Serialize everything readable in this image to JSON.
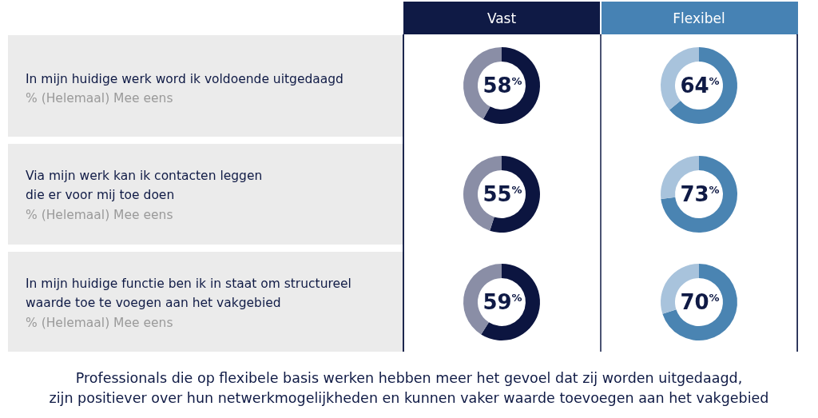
{
  "chart_data": [
    {
      "type": "donut",
      "categories": [
        null,
        null
      ],
      "values": [
        58,
        42
      ],
      "colors": [
        "#0c1540",
        "#8a8ea6"
      ],
      "value_labels": [
        "58$^{%}$",
        null
      ]
    },
    {
      "type": "donut",
      "categories": [
        null,
        null
      ],
      "values": [
        64,
        36
      ],
      "colors": [
        "#4a84b2",
        "#a8c3dc"
      ],
      "value_labels": [
        "64$^{%}$",
        null
      ]
    },
    {
      "type": "donut",
      "categories": [
        null,
        null
      ],
      "values": [
        55,
        45
      ],
      "colors": [
        "#0c1540",
        "#8a8ea6"
      ],
      "value_labels": [
        "55$^{%}$",
        null
      ]
    },
    {
      "type": "donut",
      "categories": [
        null,
        null
      ],
      "values": [
        73,
        27
      ],
      "colors": [
        "#4a84b2",
        "#a8c3dc"
      ],
      "value_labels": [
        "73$^{%}$",
        null
      ]
    },
    {
      "type": "donut",
      "categories": [
        null,
        null
      ],
      "values": [
        59,
        41
      ],
      "colors": [
        "#0c1540",
        "#8a8ea6"
      ],
      "value_labels": [
        "59$^{%}$",
        null
      ]
    },
    {
      "type": "donut",
      "categories": [
        null,
        null
      ],
      "values": [
        70,
        30
      ],
      "colors": [
        "#4a84b2",
        "#a8c3dc"
      ],
      "value_labels": [
        "70$^{%}$",
        null
      ]
    },
    {
      "type": "other",
      "annotations": [
        "Vast",
        "Flexibel",
        "In mijn huidige werk word ik voldoende uitgedaagd",
        "% (Helemaal) Mee eens",
        "Via mijn werk kan ik contacten leggen",
        "die er voor mij toe doen",
        "% (Helemaal) Mee eens",
        "In mijn huidige functie ben ik in staat om structureel",
        "waarde toe te voegen aan het vakgebied",
        "% (Helemaal) Mee eens",
        "Professionals die op flexibele basis werken hebben meer het gevoel dat zij worden uitgedaagd,",
        "zijn positiever over hun netwerkmogelijkheden en kunnen vaker waarde toevoegen aan het vakgebied"
      ]
    }
  ]
}
